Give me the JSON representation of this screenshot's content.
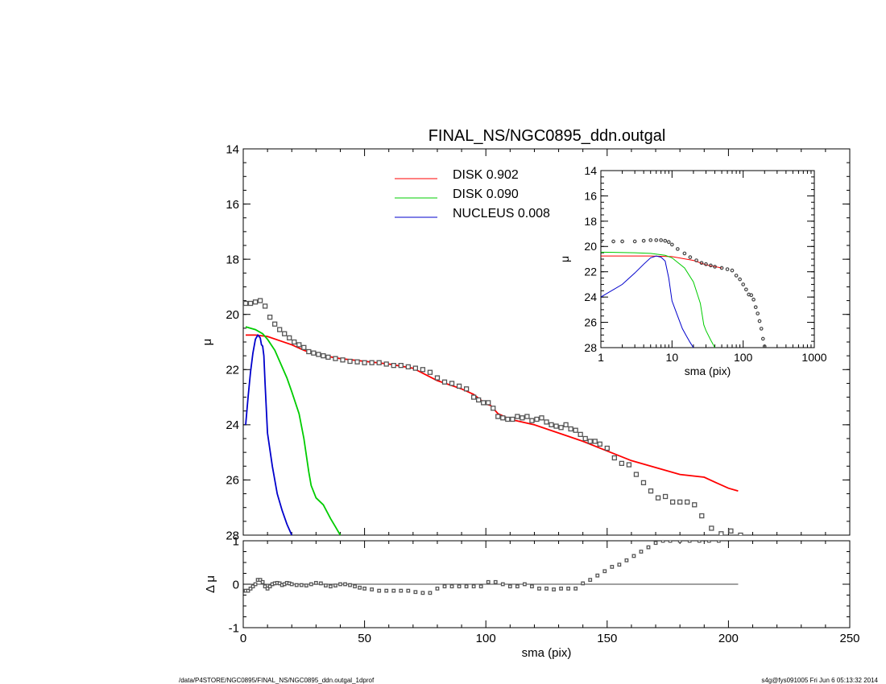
{
  "title": "FINAL_NS/NGC0895_ddn.outgal",
  "footer": {
    "left": "/data/P4STORE/NGC0895/FINAL_NS/NGC0895_ddn.outgal_1dprof",
    "right": "s4g@fys091005  Fri Jun  6 05:13:32 2014"
  },
  "chart_data": [
    {
      "id": "main",
      "type": "line",
      "xlabel": "",
      "ylabel": "μ",
      "xlim": [
        0,
        250
      ],
      "ylim": [
        28,
        14
      ],
      "yticks": [
        "14",
        "16",
        "18",
        "20",
        "22",
        "24",
        "26",
        "28"
      ],
      "legend": [
        {
          "label": "DISK  0.902",
          "color": "#ff0000"
        },
        {
          "label": "DISK  0.090",
          "color": "#00cc00"
        },
        {
          "label": "NUCLEUS  0.008",
          "color": "#0000cc"
        }
      ],
      "series": [
        {
          "name": "DISK  0.902",
          "color": "#ff0000",
          "x": [
            1,
            5,
            10,
            15,
            20,
            25,
            30,
            40,
            50,
            60,
            70,
            80,
            90,
            95,
            100,
            102,
            105,
            110,
            120,
            130,
            140,
            150,
            160,
            170,
            180,
            190,
            195,
            200,
            204
          ],
          "y": [
            20.75,
            20.75,
            20.8,
            20.95,
            21.1,
            21.3,
            21.45,
            21.6,
            21.7,
            21.8,
            21.95,
            22.4,
            22.7,
            22.9,
            23.25,
            23.3,
            23.6,
            23.8,
            24.0,
            24.3,
            24.6,
            24.95,
            25.3,
            25.55,
            25.8,
            25.9,
            26.1,
            26.3,
            26.4
          ]
        },
        {
          "name": "DISK  0.090",
          "color": "#00cc00",
          "x": [
            1,
            3,
            5,
            8,
            10,
            13,
            15,
            18,
            20,
            23,
            25,
            27,
            28,
            30,
            33,
            36,
            38,
            40
          ],
          "y": [
            20.45,
            20.5,
            20.55,
            20.7,
            20.9,
            21.3,
            21.7,
            22.3,
            22.8,
            23.6,
            24.5,
            25.7,
            26.2,
            26.65,
            26.9,
            27.4,
            27.7,
            28.0
          ]
        },
        {
          "name": "NUCLEUS  0.008",
          "color": "#0000cc",
          "x": [
            1,
            2,
            3,
            4,
            5,
            6,
            7,
            7.5,
            8,
            8.5,
            9,
            10,
            12,
            14,
            16,
            18,
            20
          ],
          "y": [
            24.0,
            23.0,
            22.1,
            21.4,
            20.9,
            20.75,
            20.85,
            21.1,
            21.15,
            21.5,
            22.5,
            24.3,
            25.5,
            26.5,
            27.1,
            27.6,
            28.0
          ]
        },
        {
          "name": "",
          "color": "#555555",
          "marker": "square",
          "x": [
            1,
            3,
            5,
            7,
            9,
            11,
            13,
            15,
            17,
            19,
            21,
            23,
            25,
            27,
            29,
            31,
            33,
            35,
            38,
            41,
            44,
            47,
            50,
            53,
            56,
            59,
            62,
            65,
            68,
            71,
            74,
            77,
            80,
            83,
            86,
            89,
            92,
            95,
            97,
            99,
            101,
            103,
            105,
            107,
            109,
            111,
            113,
            115,
            117,
            119,
            121,
            123,
            125,
            127,
            129,
            131,
            133,
            135,
            137,
            139,
            141,
            143,
            145,
            147,
            150,
            153,
            156,
            159,
            162,
            165,
            168,
            171,
            174,
            177,
            180,
            183,
            186,
            189,
            193,
            197,
            201,
            205
          ],
          "y": [
            19.6,
            19.6,
            19.55,
            19.5,
            19.7,
            20.1,
            20.35,
            20.55,
            20.7,
            20.85,
            21.0,
            21.1,
            21.2,
            21.35,
            21.4,
            21.45,
            21.5,
            21.55,
            21.6,
            21.65,
            21.7,
            21.72,
            21.75,
            21.75,
            21.75,
            21.8,
            21.85,
            21.85,
            21.9,
            21.95,
            22.0,
            22.1,
            22.3,
            22.45,
            22.5,
            22.6,
            22.7,
            23.0,
            23.1,
            23.2,
            23.2,
            23.4,
            23.7,
            23.75,
            23.8,
            23.8,
            23.7,
            23.75,
            23.7,
            23.85,
            23.8,
            23.75,
            23.9,
            24.0,
            24.05,
            24.1,
            24.0,
            24.15,
            24.2,
            24.35,
            24.5,
            24.6,
            24.6,
            24.7,
            24.85,
            25.2,
            25.4,
            25.45,
            25.8,
            26.1,
            26.4,
            26.65,
            26.6,
            26.8,
            26.8,
            26.8,
            26.9,
            27.3,
            27.75,
            27.95,
            27.85,
            28.0
          ]
        }
      ]
    },
    {
      "id": "residual",
      "type": "scatter",
      "xlabel": "sma (pix)",
      "ylabel": "Δ μ",
      "xlim": [
        0,
        250
      ],
      "ylim": [
        -1,
        1
      ],
      "xticks": [
        "0",
        "50",
        "100",
        "150",
        "200",
        "250"
      ],
      "yticks": [
        "-1",
        "0",
        "1"
      ],
      "series": [
        {
          "name": "",
          "color": "#555555",
          "marker": "square",
          "x": [
            1,
            2,
            3,
            4,
            5,
            6,
            7,
            8,
            9,
            10,
            11,
            12,
            13,
            14,
            15,
            16,
            17,
            18,
            19,
            20,
            22,
            24,
            26,
            28,
            30,
            32,
            34,
            36,
            38,
            40,
            42,
            44,
            46,
            48,
            50,
            53,
            56,
            59,
            62,
            65,
            68,
            71,
            74,
            77,
            80,
            83,
            86,
            89,
            92,
            95,
            98,
            101,
            104,
            107,
            110,
            113,
            116,
            119,
            122,
            125,
            128,
            131,
            134,
            137,
            140,
            143,
            146,
            149,
            152,
            155,
            158,
            161,
            164,
            167,
            170,
            173,
            176,
            180,
            184,
            188,
            192,
            196
          ],
          "y": [
            -0.15,
            -0.15,
            -0.1,
            -0.05,
            0.0,
            0.1,
            0.1,
            0.05,
            -0.05,
            -0.1,
            -0.05,
            0.0,
            0.02,
            0.03,
            0.02,
            -0.02,
            0.0,
            0.03,
            0.02,
            0.0,
            -0.02,
            -0.02,
            -0.03,
            0.0,
            0.03,
            0.02,
            -0.03,
            -0.05,
            -0.03,
            0.0,
            0.0,
            -0.02,
            -0.05,
            -0.08,
            -0.1,
            -0.12,
            -0.15,
            -0.15,
            -0.15,
            -0.15,
            -0.15,
            -0.18,
            -0.2,
            -0.2,
            -0.1,
            -0.05,
            -0.05,
            -0.05,
            -0.05,
            -0.05,
            -0.05,
            0.05,
            0.05,
            0.0,
            -0.05,
            -0.05,
            0.0,
            -0.05,
            -0.1,
            -0.1,
            -0.12,
            -0.1,
            -0.1,
            -0.1,
            0.02,
            0.1,
            0.2,
            0.3,
            0.4,
            0.45,
            0.55,
            0.65,
            0.75,
            0.85,
            0.95,
            1.0,
            1.0,
            1.0,
            1.0,
            1.0,
            1.0,
            1.0
          ]
        }
      ]
    },
    {
      "id": "inset",
      "type": "line",
      "xlabel": "sma (pix)",
      "ylabel": "μ",
      "xscale": "log",
      "xlim": [
        1,
        1000
      ],
      "ylim": [
        28,
        14
      ],
      "xticks": [
        "1",
        "10",
        "100",
        "1000"
      ],
      "yticks": [
        "14",
        "16",
        "18",
        "20",
        "22",
        "24",
        "26",
        "28"
      ],
      "series": [
        {
          "name": "DISK  0.902",
          "color": "#ff0000",
          "x": [
            1,
            2,
            5,
            10,
            20,
            30,
            50
          ],
          "y": [
            20.75,
            20.75,
            20.75,
            20.8,
            21.1,
            21.45,
            21.7
          ]
        },
        {
          "name": "DISK  0.090",
          "color": "#00cc00",
          "x": [
            1,
            3,
            5,
            8,
            10,
            15,
            20,
            25,
            28,
            30,
            35,
            40
          ],
          "y": [
            20.45,
            20.5,
            20.55,
            20.7,
            20.9,
            21.7,
            22.8,
            24.5,
            26.2,
            26.65,
            27.4,
            28.0
          ]
        },
        {
          "name": "NUCLEUS  0.008",
          "color": "#0000cc",
          "x": [
            1,
            2,
            3,
            4,
            5,
            6,
            7,
            8,
            9,
            10,
            12,
            14,
            16,
            18,
            20
          ],
          "y": [
            24.0,
            23.0,
            22.1,
            21.4,
            20.9,
            20.75,
            20.85,
            21.15,
            22.5,
            24.3,
            25.5,
            26.5,
            27.1,
            27.6,
            28.0
          ]
        },
        {
          "name": "",
          "color": "#444444",
          "marker": "circle",
          "x": [
            1,
            1.5,
            2,
            3,
            4,
            5,
            6,
            7,
            8,
            9,
            10,
            12,
            15,
            18,
            22,
            26,
            30,
            35,
            40,
            50,
            60,
            70,
            80,
            90,
            100,
            110,
            120,
            130,
            140,
            150,
            160,
            170,
            180,
            190,
            200
          ],
          "y": [
            19.6,
            19.6,
            19.6,
            19.6,
            19.55,
            19.5,
            19.5,
            19.5,
            19.55,
            19.65,
            19.85,
            20.2,
            20.55,
            20.85,
            21.1,
            21.3,
            21.4,
            21.5,
            21.6,
            21.7,
            21.8,
            21.9,
            22.3,
            22.6,
            23.0,
            23.4,
            23.8,
            23.85,
            24.2,
            24.8,
            25.3,
            25.9,
            26.5,
            27.3,
            27.9
          ]
        }
      ]
    }
  ]
}
